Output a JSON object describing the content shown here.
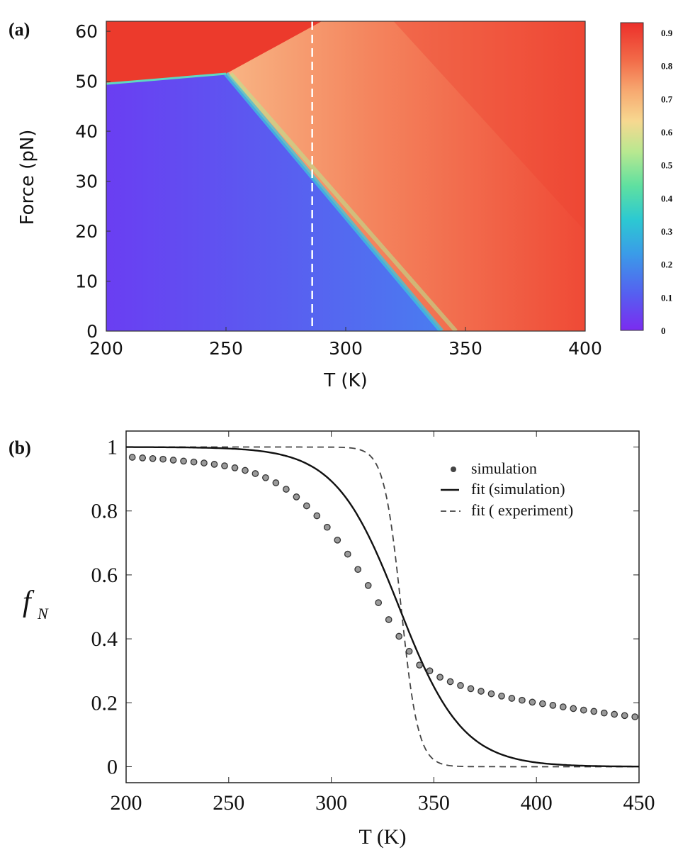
{
  "panel_a": {
    "label": "(a)",
    "chart_data": {
      "type": "heatmap",
      "xlabel": "T (K)",
      "ylabel": "Force (pN)",
      "xlim": [
        200,
        400
      ],
      "ylim": [
        0,
        62
      ],
      "x_ticks": [
        "200",
        "250",
        "300",
        "350",
        "400"
      ],
      "y_ticks": [
        "0",
        "10",
        "20",
        "30",
        "40",
        "50",
        "60"
      ],
      "colorbar_ticks": [
        "0",
        "0.1",
        "0.2",
        "0.3",
        "0.4",
        "0.5",
        "0.6",
        "0.7",
        "0.8",
        "0.9"
      ],
      "colorbar_range": [
        0,
        0.93
      ],
      "phase_boundary": [
        [
          200,
          49.5
        ],
        [
          250,
          51.5
        ],
        [
          340,
          0
        ]
      ],
      "high_force_boundary": [
        [
          250,
          51.5
        ],
        [
          290,
          62
        ]
      ],
      "reference_line_T": 286
    }
  },
  "panel_b": {
    "label": "(b)",
    "chart_data": {
      "type": "line",
      "xlabel": "T (K)",
      "ylabel_main": "f",
      "ylabel_sub": "N",
      "xlim": [
        200,
        450
      ],
      "ylim": [
        -0.05,
        1.05
      ],
      "x_ticks": [
        "200",
        "250",
        "300",
        "350",
        "400",
        "450"
      ],
      "y_ticks": [
        "0",
        "0.2",
        "0.4",
        "0.6",
        "0.8",
        "1"
      ],
      "legend_position": "top-right",
      "series": [
        {
          "name": "simulation",
          "style": "markers",
          "x": [
            203,
            208,
            213,
            218,
            223,
            228,
            233,
            238,
            243,
            248,
            253,
            258,
            263,
            268,
            273,
            278,
            283,
            288,
            293,
            298,
            303,
            308,
            313,
            318,
            323,
            328,
            333,
            338,
            343,
            348,
            353,
            358,
            363,
            368,
            373,
            378,
            383,
            388,
            393,
            398,
            403,
            408,
            413,
            418,
            423,
            428,
            433,
            438,
            443,
            448
          ],
          "values": [
            0.968,
            0.966,
            0.964,
            0.962,
            0.959,
            0.956,
            0.953,
            0.95,
            0.946,
            0.941,
            0.935,
            0.927,
            0.917,
            0.904,
            0.888,
            0.868,
            0.844,
            0.816,
            0.785,
            0.749,
            0.709,
            0.665,
            0.617,
            0.567,
            0.513,
            0.46,
            0.408,
            0.361,
            0.318,
            0.3,
            0.28,
            0.266,
            0.254,
            0.244,
            0.236,
            0.228,
            0.221,
            0.214,
            0.208,
            0.202,
            0.197,
            0.192,
            0.187,
            0.182,
            0.177,
            0.173,
            0.168,
            0.164,
            0.16,
            0.156
          ]
        },
        {
          "name": "fit (simulation)",
          "style": "solid",
          "Tm": 333,
          "width": 15.5
        },
        {
          "name": "fit ( experiment)",
          "style": "dashed",
          "Tm": 334,
          "width": 4.2
        }
      ]
    }
  }
}
